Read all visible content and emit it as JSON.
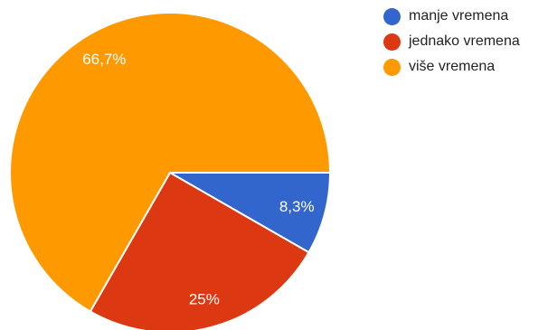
{
  "chart_data": {
    "type": "pie",
    "categories": [
      "manje vremena",
      "jednako vremena",
      "više vremena"
    ],
    "values": [
      8.3,
      25,
      66.7
    ],
    "labels": [
      "8,3%",
      "25%",
      "66,7%"
    ],
    "colors": [
      "#3366cc",
      "#dc3912",
      "#ff9900"
    ],
    "legend_position": "top-right"
  }
}
